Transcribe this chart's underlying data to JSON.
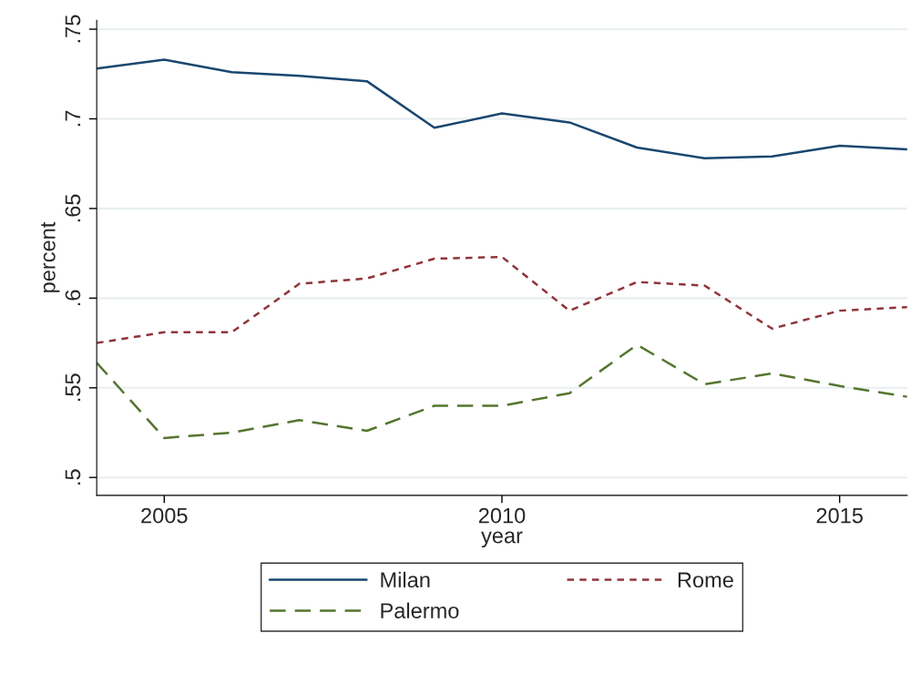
{
  "chart_data": {
    "type": "line",
    "xlabel": "year",
    "ylabel": "percent",
    "x": [
      2004,
      2005,
      2006,
      2007,
      2008,
      2009,
      2010,
      2011,
      2012,
      2013,
      2014,
      2015,
      2016
    ],
    "series": [
      {
        "name": "Milan",
        "color": "#1a476f",
        "line_style": "solid",
        "values": [
          0.728,
          0.733,
          0.726,
          0.724,
          0.721,
          0.695,
          0.703,
          0.698,
          0.684,
          0.678,
          0.679,
          0.685,
          0.683
        ]
      },
      {
        "name": "Rome",
        "color": "#90353b",
        "line_style": "dotted",
        "values": [
          0.575,
          0.581,
          0.581,
          0.608,
          0.611,
          0.622,
          0.623,
          0.593,
          0.609,
          0.607,
          0.583,
          0.593,
          0.595
        ]
      },
      {
        "name": "Palermo",
        "color": "#55752f",
        "line_style": "dashed",
        "values": [
          0.564,
          0.522,
          0.525,
          0.532,
          0.526,
          0.54,
          0.54,
          0.547,
          0.574,
          0.552,
          0.558,
          0.551,
          0.545
        ]
      }
    ],
    "xlim": [
      2004,
      2016
    ],
    "xticks": [
      2005,
      2010,
      2015
    ],
    "ylim": [
      0.49,
      0.755
    ],
    "yticks": [
      {
        "value": 0.5,
        "label": ".5"
      },
      {
        "value": 0.55,
        "label": ".55"
      },
      {
        "value": 0.6,
        "label": ".6"
      },
      {
        "value": 0.65,
        "label": ".65"
      },
      {
        "value": 0.7,
        "label": ".7"
      },
      {
        "value": 0.75,
        "label": ".75"
      }
    ],
    "grid": "y",
    "legend": "bottom",
    "marker": "none"
  }
}
